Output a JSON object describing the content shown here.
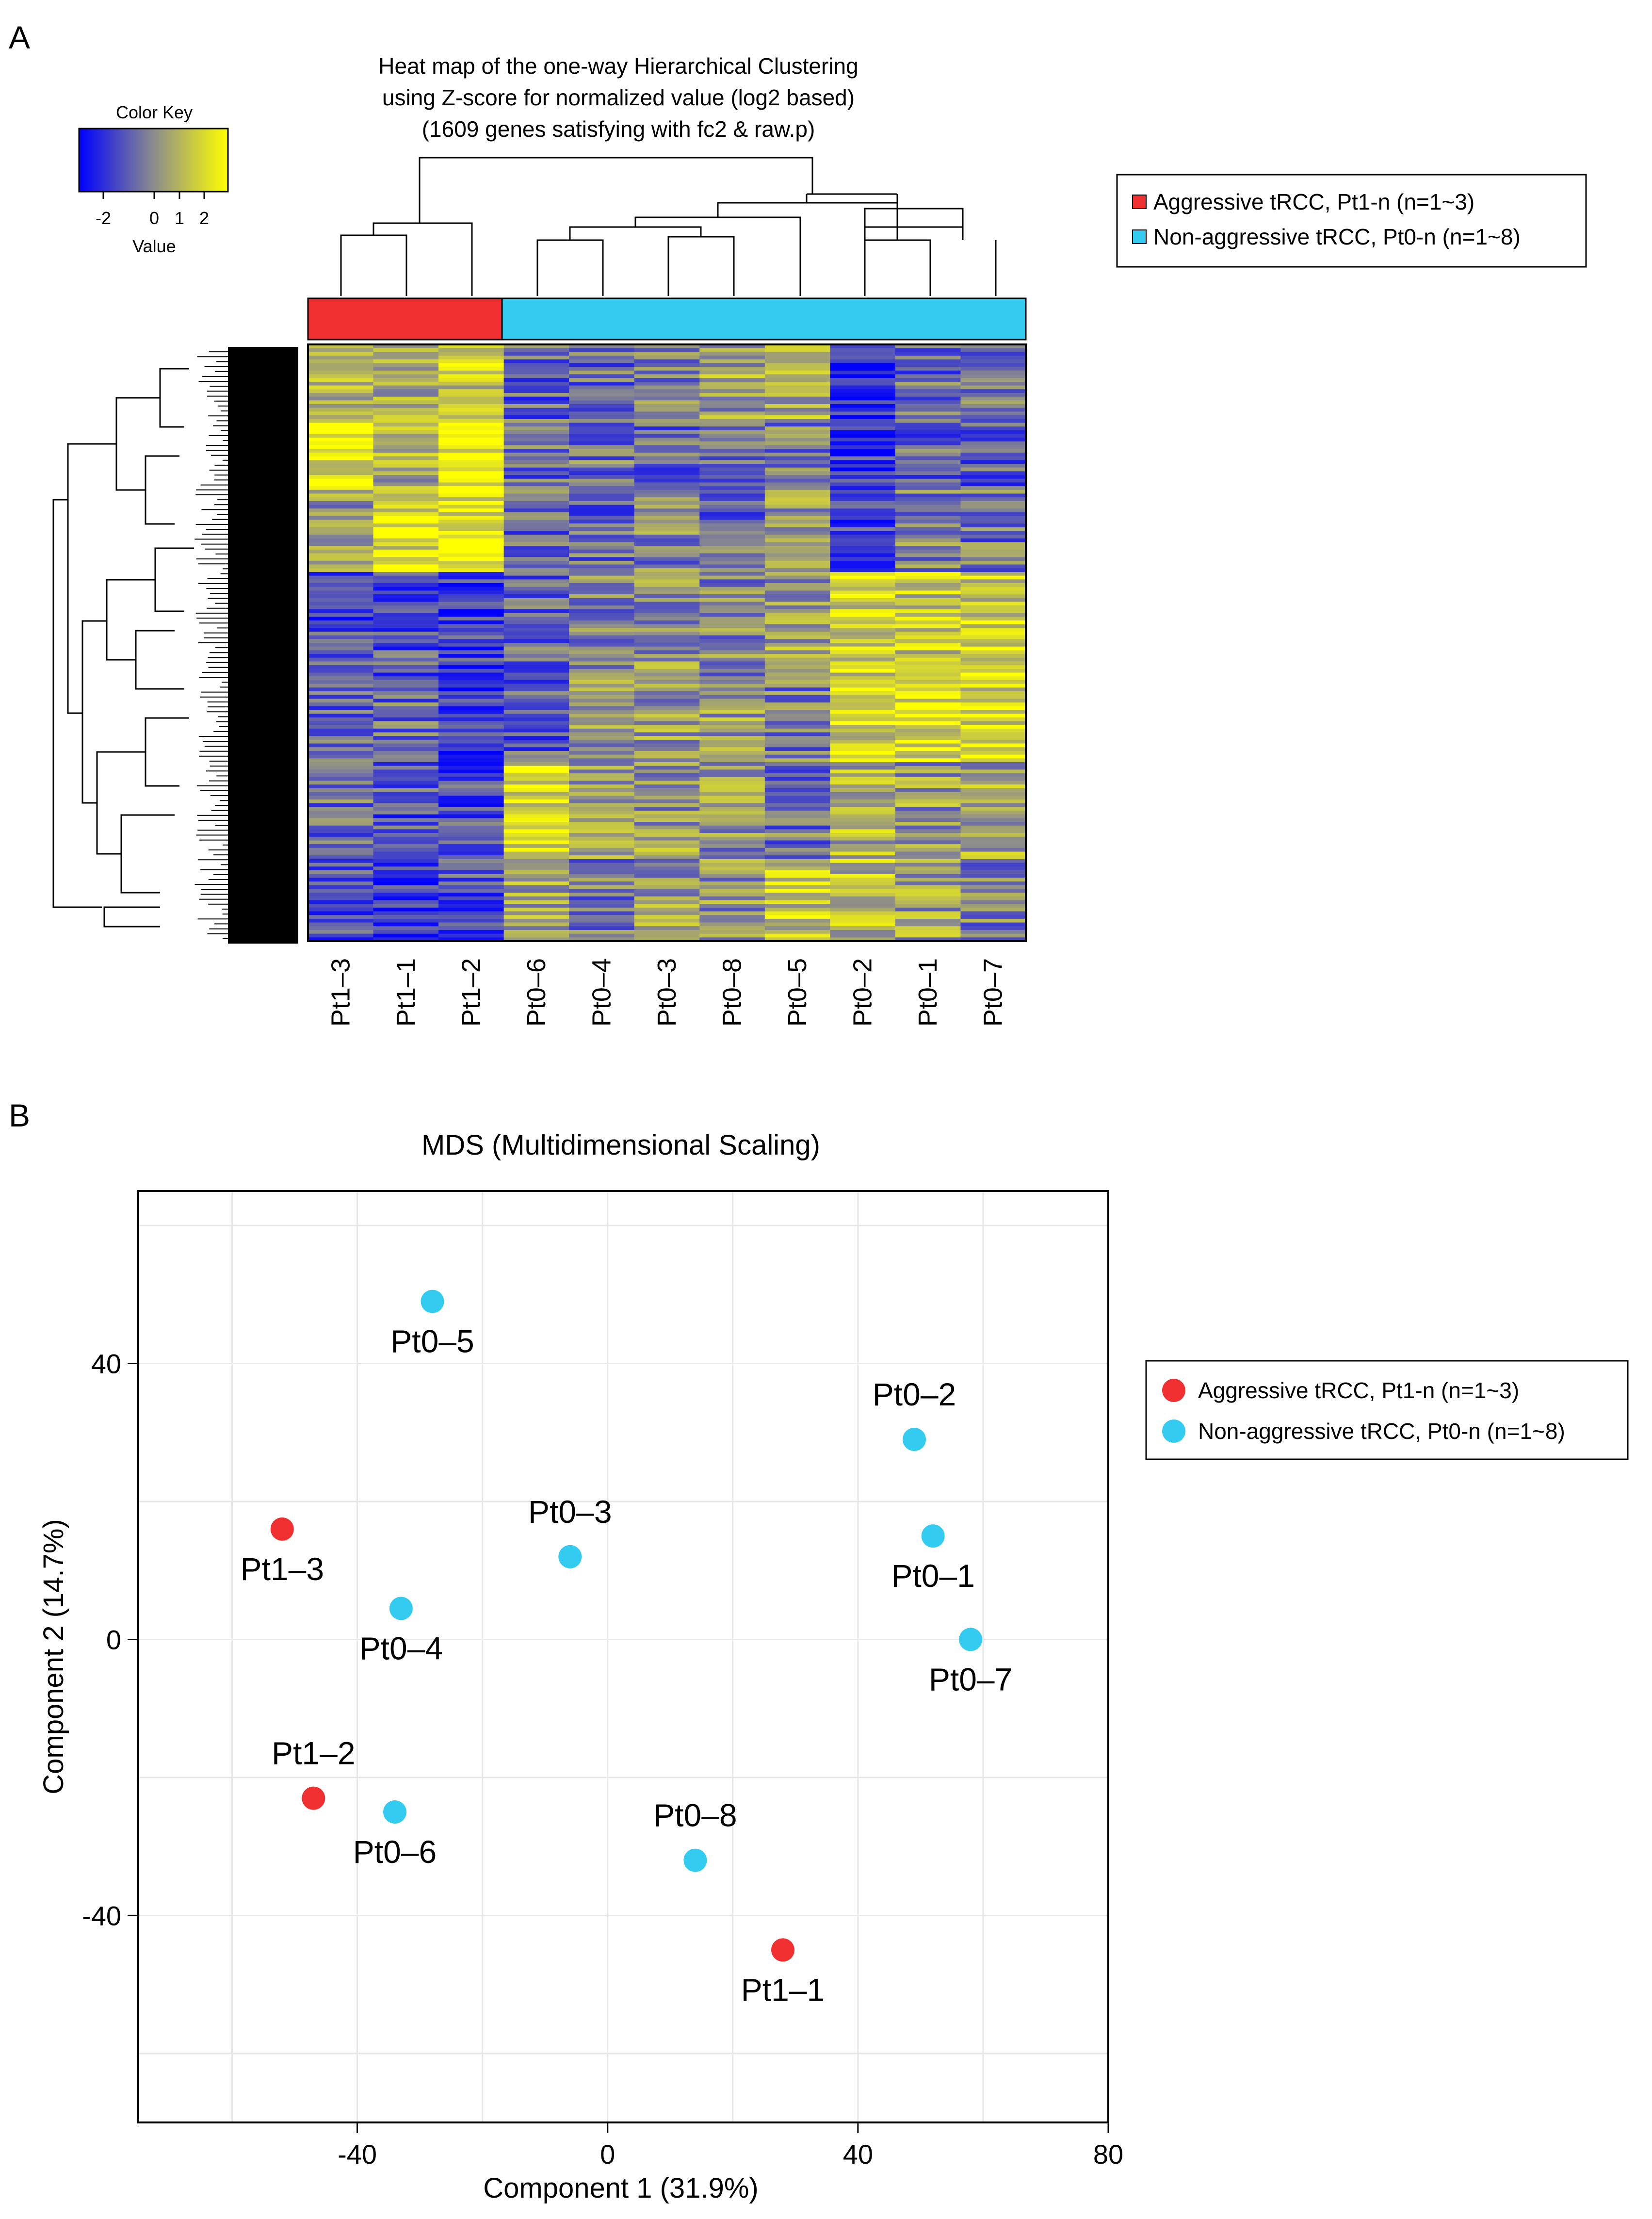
{
  "panel_a": {
    "label": "A",
    "title_lines": [
      "Heat map of the one-way Hierarchical Clustering",
      "using Z-score for normalized value (log2 based)",
      "(1609 genes satisfying with fc2 & raw.p)"
    ],
    "color_key": {
      "title": "Color Key",
      "ticks": [
        "-2",
        "0",
        "1",
        "2"
      ],
      "axis_label": "Value",
      "colors": [
        "#0000ff",
        "#8c8c8c",
        "#ffff00"
      ]
    },
    "legend": [
      {
        "label": "Aggressive tRCC, Pt1-n (n=1~3)",
        "color": "#f03030"
      },
      {
        "label": "Non-aggressive tRCC, Pt0-n (n=1~8)",
        "color": "#33ccf0"
      }
    ]
  },
  "panel_b": {
    "label": "B",
    "legend": [
      {
        "label": "Aggressive tRCC, Pt1-n (n=1~3)",
        "color": "#f03030"
      },
      {
        "label": "Non-aggressive tRCC, Pt0-n (n=1~8)",
        "color": "#33ccf0"
      }
    ]
  },
  "chart_data": [
    {
      "type": "heatmap",
      "title": "Heat map of the one-way Hierarchical Clustering using Z-score for normalized value (log2 based) (1609 genes satisfying with fc2 & raw.p)",
      "columns": [
        "Pt1–3",
        "Pt1–1",
        "Pt1–2",
        "Pt0–6",
        "Pt0–4",
        "Pt0–3",
        "Pt0–8",
        "Pt0–5",
        "Pt0–2",
        "Pt0–1",
        "Pt0–7"
      ],
      "column_groups": [
        "Aggressive",
        "Aggressive",
        "Aggressive",
        "Non-aggressive",
        "Non-aggressive",
        "Non-aggressive",
        "Non-aggressive",
        "Non-aggressive",
        "Non-aggressive",
        "Non-aggressive",
        "Non-aggressive"
      ],
      "group_colors": {
        "Aggressive": "#f03030",
        "Non-aggressive": "#33ccf0"
      },
      "value_range": [
        -2.5,
        2.5
      ],
      "column_dendrogram_order": [
        [
          "Pt1–3",
          "Pt1–1",
          "Pt1–2"
        ],
        [
          "Pt0–6",
          "Pt0–4",
          "Pt0–3",
          "Pt0–8",
          "Pt0–5",
          "Pt0–2",
          "Pt0–1",
          "Pt0–7"
        ]
      ]
    },
    {
      "type": "scatter",
      "title": "MDS (Multidimensional Scaling)",
      "xlabel": "Component 1 (31.9%)",
      "ylabel": "Component 2 (14.7%)",
      "xlim": [
        -75,
        80
      ],
      "ylim": [
        -70,
        65
      ],
      "xticks": [
        -40,
        0,
        40,
        80
      ],
      "yticks": [
        -40,
        0,
        40
      ],
      "grid": true,
      "legend_position": "right",
      "series": [
        {
          "name": "Aggressive tRCC, Pt1-n (n=1~3)",
          "color": "#f03030",
          "points": [
            {
              "label": "Pt1–3",
              "x": -52,
              "y": 16
            },
            {
              "label": "Pt1–2",
              "x": -47,
              "y": -23
            },
            {
              "label": "Pt1–1",
              "x": 28,
              "y": -45
            }
          ]
        },
        {
          "name": "Non-aggressive tRCC, Pt0-n (n=1~8)",
          "color": "#33ccf0",
          "points": [
            {
              "label": "Pt0–5",
              "x": -28,
              "y": 49
            },
            {
              "label": "Pt0–4",
              "x": -33,
              "y": 4.5
            },
            {
              "label": "Pt0–6",
              "x": -34,
              "y": -25
            },
            {
              "label": "Pt0–3",
              "x": -6,
              "y": 12
            },
            {
              "label": "Pt0–8",
              "x": 14,
              "y": -32
            },
            {
              "label": "Pt0–2",
              "x": 49,
              "y": 29
            },
            {
              "label": "Pt0–1",
              "x": 52,
              "y": 15
            },
            {
              "label": "Pt0–7",
              "x": 58,
              "y": 0
            }
          ]
        }
      ]
    }
  ]
}
